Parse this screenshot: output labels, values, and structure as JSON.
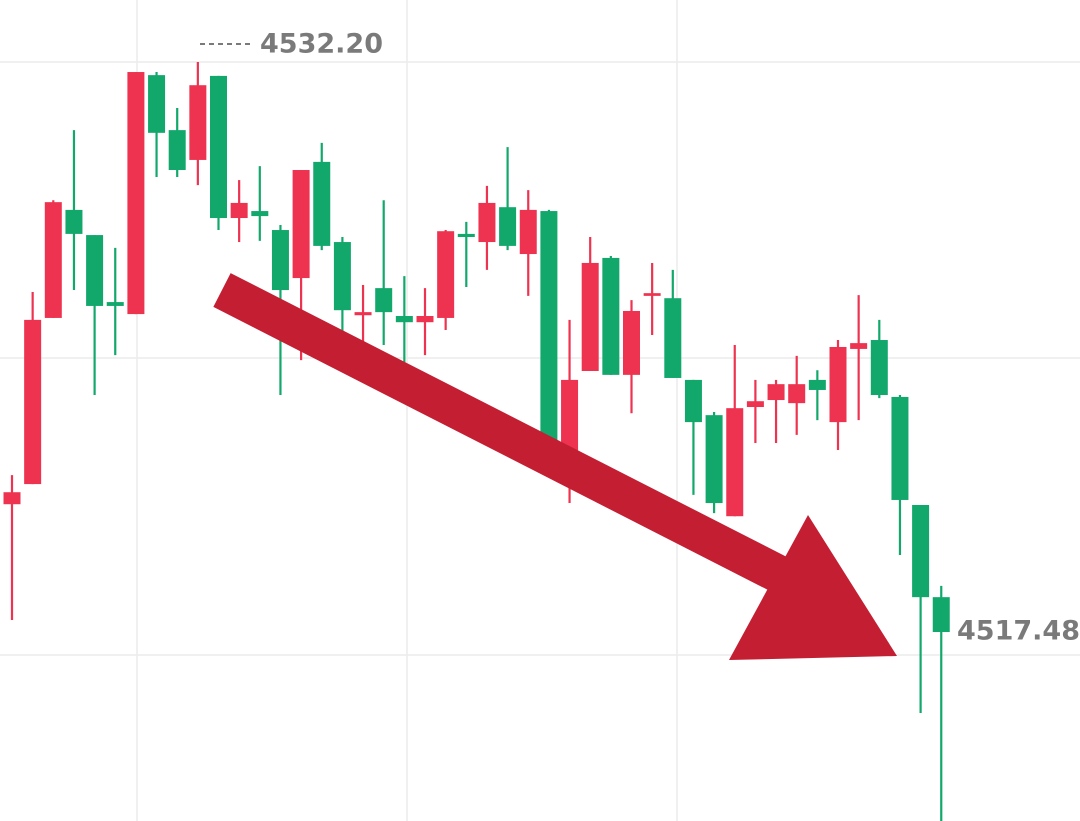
{
  "chart_data": {
    "type": "candlestick",
    "ylim": [
      4512.6,
      4533.8
    ],
    "up_color": "#ee3350",
    "down_color": "#13a86b",
    "open": [
      4520.78,
      4521.3,
      4525.59,
      4528.38,
      4527.73,
      4526.0,
      4525.69,
      4531.86,
      4530.44,
      4529.67,
      4531.84,
      4528.17,
      4528.35,
      4527.86,
      4526.62,
      4529.62,
      4527.55,
      4525.66,
      4526.36,
      4525.64,
      4525.48,
      4525.59,
      4527.76,
      4527.55,
      4528.45,
      4527.24,
      4528.35,
      4522.05,
      4524.22,
      4527.14,
      4524.12,
      4526.16,
      4526.1,
      4523.99,
      4523.08,
      4520.47,
      4523.29,
      4523.47,
      4523.39,
      4523.99,
      4522.9,
      4524.79,
      4525.02,
      4523.55,
      4520.76,
      4518.38
    ],
    "high": [
      4521.53,
      4526.26,
      4528.63,
      4530.44,
      4527.73,
      4527.4,
      4531.94,
      4531.94,
      4531.01,
      4532.2,
      4531.84,
      4529.15,
      4529.51,
      4527.99,
      4529.41,
      4530.11,
      4527.68,
      4526.44,
      4528.63,
      4526.67,
      4526.36,
      4527.86,
      4528.07,
      4529.0,
      4530.0,
      4528.89,
      4528.38,
      4525.54,
      4527.68,
      4527.19,
      4526.05,
      4527.01,
      4526.83,
      4523.99,
      4523.16,
      4524.89,
      4523.99,
      4523.99,
      4524.61,
      4524.24,
      4525.02,
      4526.18,
      4525.54,
      4523.6,
      4520.76,
      4518.67
    ],
    "low": [
      4517.79,
      4521.3,
      4525.59,
      4526.31,
      4523.6,
      4524.63,
      4525.69,
      4529.23,
      4529.23,
      4529.02,
      4527.86,
      4527.55,
      4527.58,
      4523.6,
      4524.5,
      4527.34,
      4525.15,
      4524.71,
      4524.89,
      4524.24,
      4524.63,
      4525.28,
      4526.39,
      4526.83,
      4527.34,
      4526.16,
      4522.18,
      4520.81,
      4524.22,
      4524.12,
      4523.13,
      4525.15,
      4524.04,
      4521.02,
      4520.55,
      4520.47,
      4522.36,
      4522.36,
      4522.57,
      4522.95,
      4522.18,
      4522.95,
      4523.52,
      4519.47,
      4515.39,
      4512.6
    ],
    "close": [
      4521.09,
      4525.54,
      4528.58,
      4527.76,
      4525.9,
      4525.9,
      4531.94,
      4530.37,
      4529.41,
      4531.6,
      4528.17,
      4528.56,
      4528.22,
      4526.31,
      4529.41,
      4527.45,
      4525.79,
      4525.74,
      4525.74,
      4525.48,
      4525.64,
      4527.83,
      4527.68,
      4528.56,
      4527.45,
      4528.38,
      4522.18,
      4523.99,
      4527.01,
      4524.12,
      4525.77,
      4526.23,
      4524.04,
      4522.9,
      4520.81,
      4523.26,
      4523.44,
      4523.88,
      4523.88,
      4523.73,
      4524.84,
      4524.94,
      4523.6,
      4520.89,
      4518.38,
      4517.48
    ],
    "annotations": [
      {
        "value": 4532.2,
        "label": "4532.20"
      },
      {
        "value": 4517.48,
        "label": "4517.48"
      }
    ]
  }
}
